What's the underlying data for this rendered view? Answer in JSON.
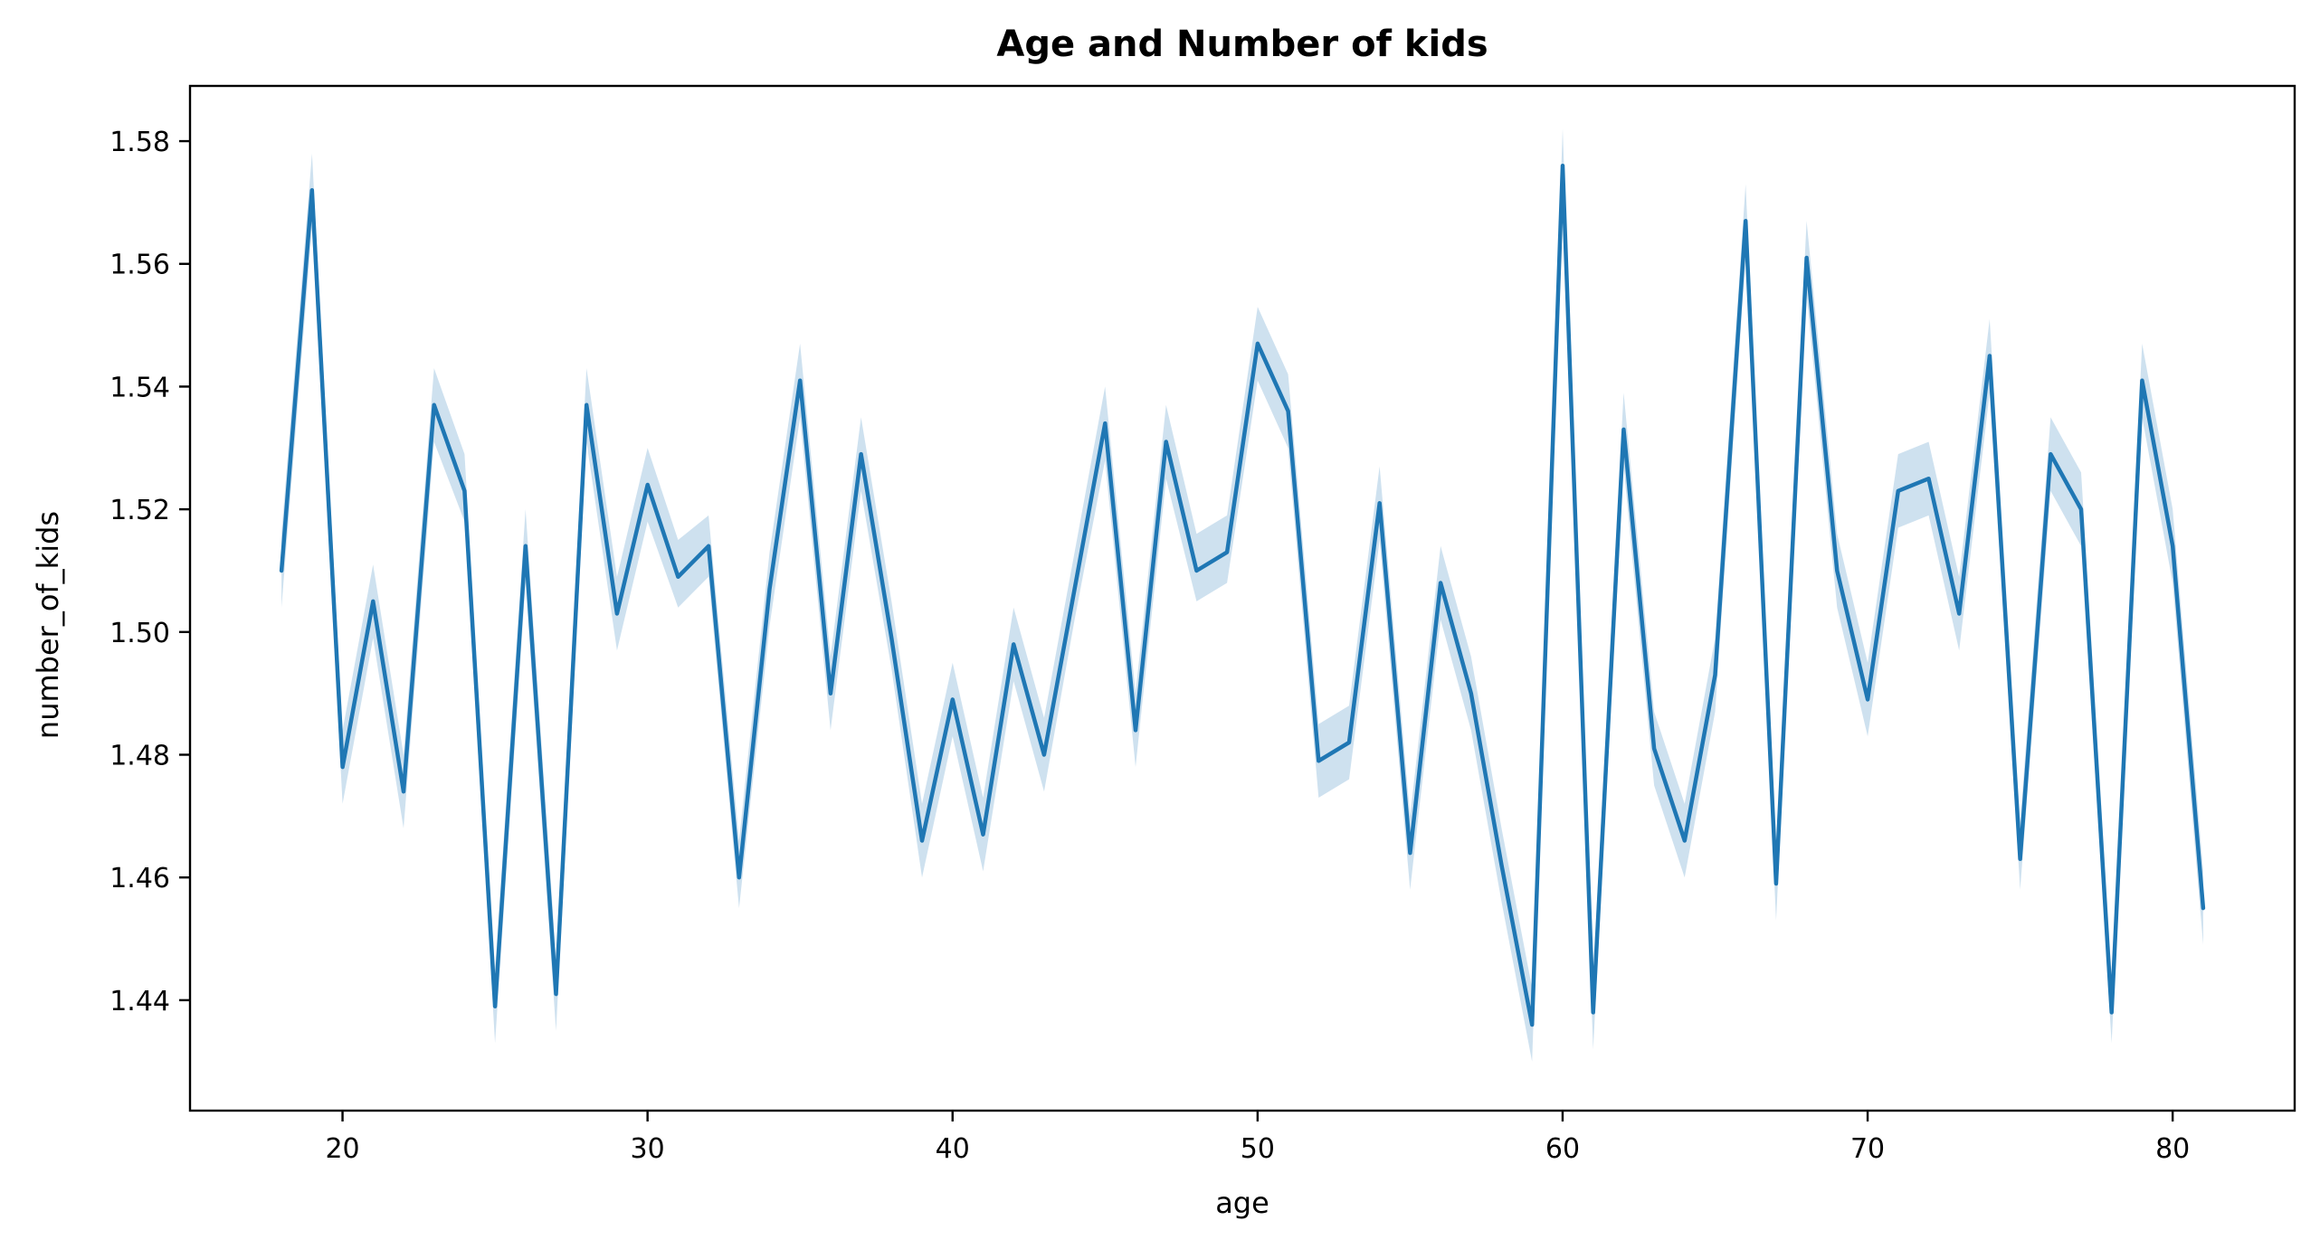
{
  "colors": {
    "series": "#1f77b4",
    "band": "#1f77b4",
    "axis": "#000000",
    "background": "#ffffff"
  },
  "chart_data": {
    "type": "line",
    "title": "Age and Number of kids",
    "xlabel": "age",
    "ylabel": "number_of_kids",
    "xlim": [
      15,
      84
    ],
    "ylim": [
      1.422,
      1.589
    ],
    "xticks": [
      20,
      30,
      40,
      50,
      60,
      70,
      80
    ],
    "yticks": [
      1.44,
      1.46,
      1.48,
      1.5,
      1.52,
      1.54,
      1.56,
      1.58
    ],
    "xtick_labels": [
      "20",
      "30",
      "40",
      "50",
      "60",
      "70",
      "80"
    ],
    "ytick_labels": [
      "1.44",
      "1.46",
      "1.48",
      "1.50",
      "1.52",
      "1.54",
      "1.56",
      "1.58"
    ],
    "grid": false,
    "legend": "none",
    "series": [
      {
        "x": [
          18,
          19,
          20,
          21,
          22,
          23,
          24,
          25,
          26,
          27,
          28,
          29,
          30,
          31,
          32,
          33,
          34,
          35,
          36,
          37,
          38,
          39,
          40,
          41,
          42,
          43,
          44,
          45,
          46,
          47,
          48,
          49,
          50,
          51,
          52,
          53,
          54,
          55,
          56,
          57,
          58,
          59,
          60,
          61,
          62,
          63,
          64,
          65,
          66,
          67,
          68,
          69,
          70,
          71,
          72,
          73,
          74,
          75,
          76,
          77,
          78,
          79,
          80,
          81
        ],
        "y": [
          1.51,
          1.572,
          1.478,
          1.505,
          1.474,
          1.537,
          1.523,
          1.439,
          1.514,
          1.441,
          1.537,
          1.503,
          1.524,
          1.509,
          1.514,
          1.46,
          1.507,
          1.541,
          1.49,
          1.529,
          1.499,
          1.466,
          1.489,
          1.467,
          1.498,
          1.48,
          1.507,
          1.534,
          1.484,
          1.531,
          1.51,
          1.513,
          1.547,
          1.536,
          1.479,
          1.482,
          1.521,
          1.464,
          1.508,
          1.49,
          1.462,
          1.436,
          1.576,
          1.438,
          1.533,
          1.481,
          1.466,
          1.493,
          1.567,
          1.459,
          1.561,
          1.51,
          1.489,
          1.523,
          1.525,
          1.503,
          1.545,
          1.463,
          1.529,
          1.52,
          1.438,
          1.541,
          1.514,
          1.455
        ],
        "ci_lower": [
          1.504,
          1.566,
          1.472,
          1.499,
          1.468,
          1.531,
          1.518,
          1.433,
          1.508,
          1.435,
          1.531,
          1.497,
          1.518,
          1.504,
          1.509,
          1.455,
          1.501,
          1.535,
          1.484,
          1.523,
          1.494,
          1.46,
          1.483,
          1.461,
          1.492,
          1.474,
          1.502,
          1.528,
          1.478,
          1.525,
          1.505,
          1.508,
          1.541,
          1.53,
          1.473,
          1.476,
          1.515,
          1.458,
          1.502,
          1.484,
          1.456,
          1.43,
          1.57,
          1.432,
          1.527,
          1.475,
          1.46,
          1.487,
          1.561,
          1.453,
          1.555,
          1.504,
          1.483,
          1.517,
          1.519,
          1.497,
          1.539,
          1.458,
          1.523,
          1.514,
          1.433,
          1.535,
          1.508,
          1.449
        ],
        "ci_upper": [
          1.516,
          1.578,
          1.484,
          1.511,
          1.48,
          1.543,
          1.529,
          1.445,
          1.52,
          1.447,
          1.543,
          1.509,
          1.53,
          1.515,
          1.519,
          1.466,
          1.513,
          1.547,
          1.496,
          1.535,
          1.505,
          1.472,
          1.495,
          1.473,
          1.504,
          1.486,
          1.513,
          1.54,
          1.49,
          1.537,
          1.516,
          1.519,
          1.553,
          1.542,
          1.485,
          1.488,
          1.527,
          1.47,
          1.514,
          1.496,
          1.468,
          1.442,
          1.582,
          1.444,
          1.539,
          1.487,
          1.472,
          1.499,
          1.573,
          1.465,
          1.567,
          1.516,
          1.495,
          1.529,
          1.531,
          1.509,
          1.551,
          1.469,
          1.535,
          1.526,
          1.444,
          1.547,
          1.52,
          1.461
        ]
      }
    ]
  }
}
